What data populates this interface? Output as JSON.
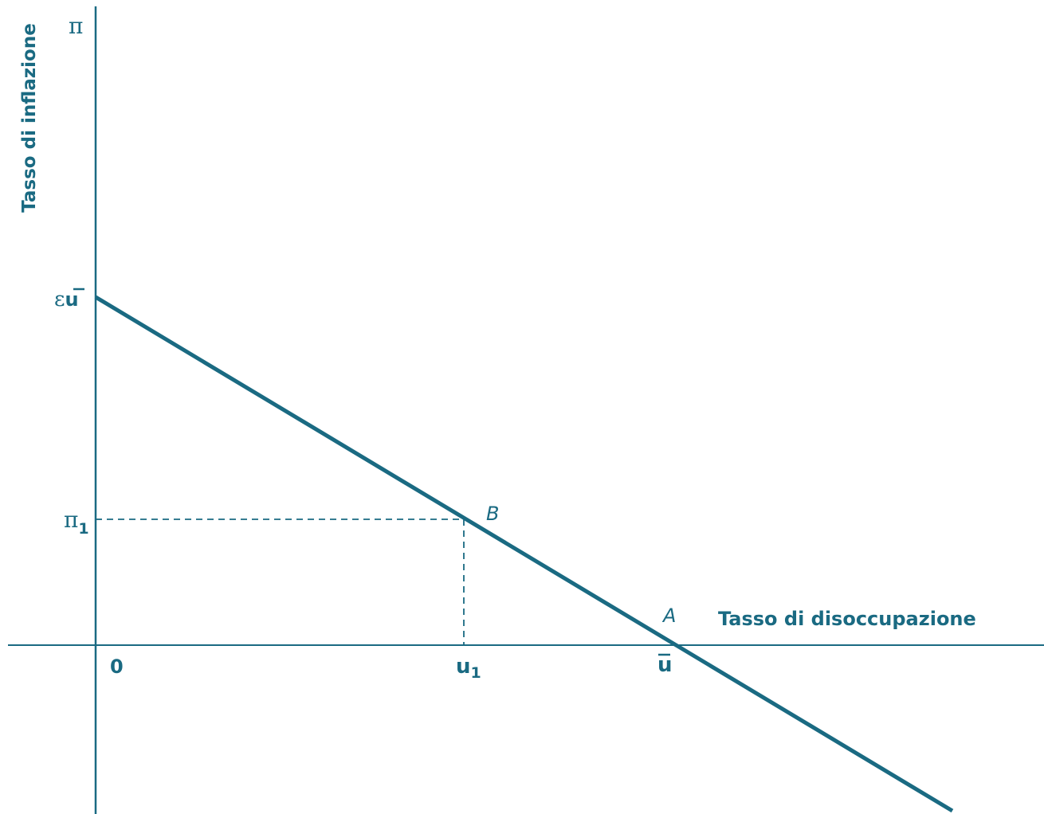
{
  "colors": {
    "axis": "#1a6a82",
    "curve": "#1a6a82",
    "text": "#1a6a82",
    "background": "#ffffff"
  },
  "axes": {
    "y_title": "Tasso di inflazione",
    "x_title": "Tasso di disoccupazione",
    "y_symbol": "π",
    "origin": "0"
  },
  "ticks": {
    "y_intercept": {
      "base": "ε",
      "over": "u"
    },
    "pi1": {
      "base": "π",
      "sub": "1"
    },
    "u1": {
      "base": "u",
      "sub": "1"
    },
    "ubar": {
      "over": "u"
    }
  },
  "points": {
    "A": "A",
    "B": "B"
  }
}
